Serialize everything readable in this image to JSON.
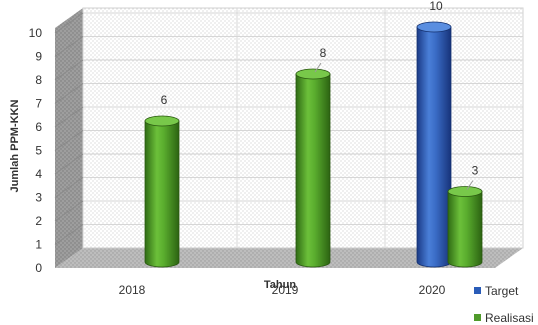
{
  "chart_data": {
    "type": "bar",
    "categories": [
      "2018",
      "2019",
      "2020"
    ],
    "series": [
      {
        "name": "Target",
        "values": [
          null,
          null,
          10
        ],
        "color": "#2a5cb8"
      },
      {
        "name": "Realisasi",
        "values": [
          6,
          8,
          3
        ],
        "color": "#4f9a2a"
      }
    ],
    "data_labels": {
      "2018": [
        "",
        "6"
      ],
      "2019": [
        "",
        "8"
      ],
      "2020": [
        "10",
        "3"
      ]
    },
    "xlabel": "Tahun",
    "ylabel": "Jumlah PPM-KKN",
    "ylim": [
      0,
      10
    ],
    "yticks": [
      0,
      1,
      2,
      3,
      4,
      5,
      6,
      7,
      8,
      9,
      10
    ],
    "grid": true,
    "legend_position": "right",
    "style": "3d-cylinder"
  }
}
